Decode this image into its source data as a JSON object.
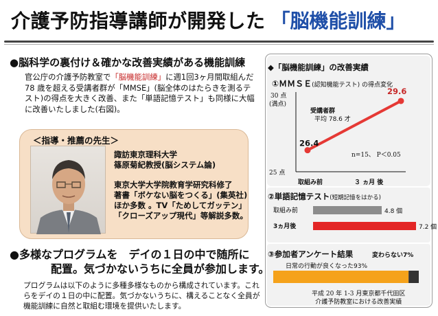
{
  "header": {
    "title": "介護予防指導講師が開発した",
    "highlight": "「脳機能訓練」"
  },
  "section1": {
    "title": "●脳科学の裏付け＆確かな改善実績がある機能訓練",
    "paragraph": {
      "pre": "官公庁の介護予防教室で",
      "highlight": "「脳機能訓練」",
      "post": "に週1回3ヶ月間取組んだ78 歳を超える受講者群が「MMSE」(脳全体のはたらきを測るテスト)の得点を大きく改善、また「単語記憶テスト」も同様に大幅に改善いたしました(右図)。"
    }
  },
  "advisor": {
    "label": "＜指導・推薦の先生＞",
    "affiliation": "諏訪東京理科大学",
    "name": "篠原菊紀教授(脳システム論)",
    "bio": [
      "東京大学大学院教育学研究科修了",
      "著書「ボケない脳をつくる」(集英社)",
      "ほか多数 。TV「ためしてガッテン」",
      "「クローズアップ現代」等解説多数。"
    ]
  },
  "section2": {
    "title_line1": "●多様なプログラムを　デイの１日の中で随所に",
    "title_line2": "配置。気づかないうちに全員が参加します。",
    "paragraph": "プログラムは以下のように多種多様なものから構成されています。これらをデイの１日の中に配置。気づかないうちに、構えることなく全員が機能訓練に自然と取組む環境を提供いたします。"
  },
  "results": {
    "title": "◆「脳機能訓練」の改善実績",
    "mmse_title": "①ＭＭＳＥ",
    "mmse_note": "(認知機能テスト) の得点変化",
    "word_title": "②単語記憶テスト",
    "word_note": "(短期記憶をはかる)",
    "survey_title": "③参加者アンケート結果",
    "footnote_line1": "平成 20 年 1-3 月東京都千代田区",
    "footnote_line2": "介護予防教室における改善実績"
  },
  "chart_data": [
    {
      "type": "line",
      "title": "ＭＭＳＥ(認知機能テスト) の得点変化",
      "categories": [
        "取組み前",
        "３ ヵ月 後"
      ],
      "values": [
        26.4,
        29.6
      ],
      "value_labels": [
        "26.4",
        "29.6"
      ],
      "ylim": [
        25,
        30
      ],
      "ytick_labels": [
        "30 点",
        "(満点)",
        "25 点"
      ],
      "annotation_group": "受講者群",
      "annotation_age": "平均 78.6 才",
      "annotation_stats": "n=15、 P＜0.05",
      "color": "#e53935"
    },
    {
      "type": "bar",
      "title": "単語記憶テスト",
      "categories": [
        "取組み前",
        "3ヵ月後"
      ],
      "values": [
        4.8,
        7.2
      ],
      "value_labels": [
        "4.8 個",
        "7.2 個"
      ],
      "colors": [
        "#8c8c8c",
        "#e32626"
      ],
      "xlim": [
        0,
        7.2
      ]
    },
    {
      "type": "bar",
      "title": "参加者アンケート結果",
      "segments": [
        {
          "name": "日常の行動が良くなった",
          "value": 93,
          "label": "日常の行動が良くなった93%",
          "color": "#f5a21b"
        },
        {
          "name": "変わらない",
          "value": 7,
          "label": "変わらない7%",
          "color": "#333333"
        }
      ]
    }
  ]
}
